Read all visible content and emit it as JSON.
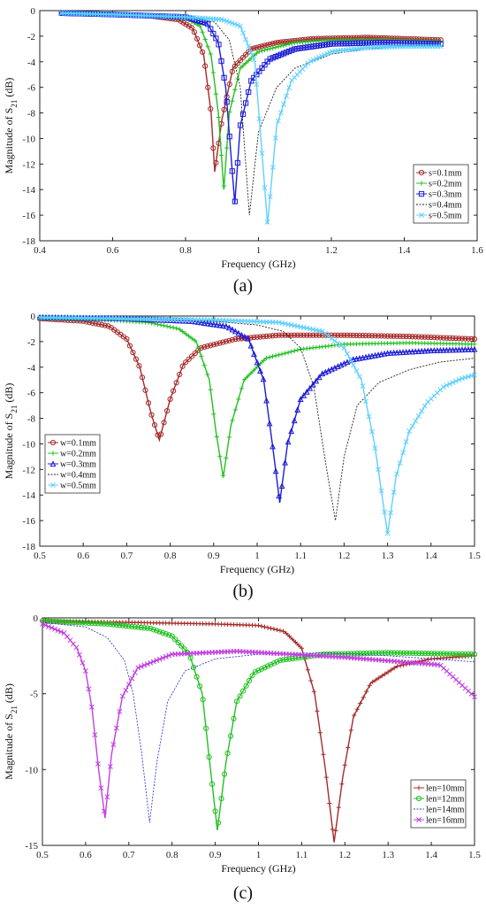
{
  "panels": [
    {
      "caption": "(a)",
      "chart_data": {
        "type": "line",
        "xlabel": "Frequency (GHz)",
        "ylabel": "Magnitude of S21 (dB)",
        "xlim": [
          0.4,
          1.6
        ],
        "ylim": [
          -18,
          0
        ],
        "xticks": [
          "0.4",
          "0.6",
          "0.8",
          "1",
          "1.2",
          "1.4",
          "1.6"
        ],
        "yticks": [
          "0",
          "-2",
          "-4",
          "-6",
          "-8",
          "-10",
          "-12",
          "-14",
          "-16",
          "-18"
        ],
        "legend_position": "lower-right",
        "series": [
          {
            "name": "s=0.1mm",
            "color": "#a52a2a",
            "marker": "circle",
            "x": [
              0.46,
              0.6,
              0.7,
              0.78,
              0.82,
              0.85,
              0.87,
              0.88,
              0.9,
              0.93,
              0.98,
              1.05,
              1.15,
              1.3,
              1.5
            ],
            "y": [
              -0.2,
              -0.3,
              -0.4,
              -0.7,
              -1.4,
              -3.5,
              -8.0,
              -12.6,
              -8.5,
              -4.5,
              -3.0,
              -2.5,
              -2.2,
              -2.1,
              -2.3
            ]
          },
          {
            "name": "s=0.2mm",
            "color": "#22c022",
            "marker": "plus",
            "x": [
              0.46,
              0.6,
              0.7,
              0.8,
              0.84,
              0.87,
              0.89,
              0.905,
              0.92,
              0.95,
              1.0,
              1.1,
              1.2,
              1.35,
              1.5
            ],
            "y": [
              -0.2,
              -0.3,
              -0.4,
              -0.6,
              -1.2,
              -3.5,
              -8.0,
              -14.0,
              -8.0,
              -4.5,
              -3.2,
              -2.5,
              -2.3,
              -2.3,
              -2.4
            ]
          },
          {
            "name": "s=0.3mm",
            "color": "#1c1cd6",
            "marker": "square",
            "x": [
              0.46,
              0.6,
              0.7,
              0.8,
              0.86,
              0.89,
              0.91,
              0.935,
              0.95,
              0.98,
              1.03,
              1.1,
              1.2,
              1.35,
              1.5
            ],
            "y": [
              -0.2,
              -0.3,
              -0.4,
              -0.5,
              -1.0,
              -2.5,
              -6.0,
              -15.1,
              -9.0,
              -5.5,
              -3.8,
              -3.0,
              -2.6,
              -2.5,
              -2.6
            ]
          },
          {
            "name": "s=0.4mm",
            "color": "#222222",
            "marker": "none",
            "x": [
              0.46,
              0.6,
              0.7,
              0.8,
              0.88,
              0.92,
              0.95,
              0.975,
              1.0,
              1.05,
              1.1,
              1.2,
              1.3,
              1.4,
              1.5
            ],
            "y": [
              -0.2,
              -0.3,
              -0.4,
              -0.5,
              -0.9,
              -2.3,
              -6.0,
              -16.0,
              -9.5,
              -6.0,
              -4.5,
              -3.4,
              -3.0,
              -2.8,
              -2.7
            ]
          },
          {
            "name": "s=0.5mm",
            "color": "#5fd0ff",
            "marker": "x",
            "x": [
              0.46,
              0.6,
              0.7,
              0.8,
              0.9,
              0.95,
              0.99,
              1.025,
              1.05,
              1.09,
              1.14,
              1.2,
              1.3,
              1.4,
              1.5
            ],
            "y": [
              -0.2,
              -0.3,
              -0.4,
              -0.5,
              -0.7,
              -1.2,
              -4.0,
              -16.7,
              -9.0,
              -5.5,
              -4.0,
              -3.2,
              -2.9,
              -2.8,
              -2.8
            ]
          }
        ]
      }
    },
    {
      "caption": "(b)",
      "chart_data": {
        "type": "line",
        "xlabel": "Frequency (GHz)",
        "ylabel": "Magnitude of S21 (dB)",
        "xlim": [
          0.5,
          1.5
        ],
        "ylim": [
          -18,
          0
        ],
        "xticks": [
          "0.5",
          "0.6",
          "0.7",
          "0.8",
          "0.9",
          "1",
          "1.1",
          "1.2",
          "1.3",
          "1.4",
          "1.5"
        ],
        "yticks": [
          "0",
          "-2",
          "-4",
          "-6",
          "-8",
          "-10",
          "-12",
          "-14",
          "-16",
          "-18"
        ],
        "legend_position": "lower-left",
        "series": [
          {
            "name": "w=0.1mm",
            "color": "#a52a2a",
            "marker": "circle",
            "x": [
              0.5,
              0.6,
              0.66,
              0.7,
              0.73,
              0.755,
              0.775,
              0.8,
              0.83,
              0.87,
              0.95,
              1.05,
              1.2,
              1.35,
              1.5
            ],
            "y": [
              -0.2,
              -0.4,
              -0.8,
              -1.8,
              -4.0,
              -7.5,
              -9.7,
              -6.5,
              -3.8,
              -2.5,
              -1.8,
              -1.5,
              -1.5,
              -1.6,
              -1.8
            ]
          },
          {
            "name": "w=0.2mm",
            "color": "#22c022",
            "marker": "plus",
            "x": [
              0.5,
              0.65,
              0.75,
              0.82,
              0.86,
              0.89,
              0.905,
              0.922,
              0.94,
              0.97,
              1.02,
              1.1,
              1.2,
              1.35,
              1.5
            ],
            "y": [
              -0.2,
              -0.3,
              -0.5,
              -1.0,
              -2.0,
              -5.0,
              -9.0,
              -12.6,
              -8.5,
              -5.0,
              -3.3,
              -2.6,
              -2.2,
              -2.1,
              -2.2
            ]
          },
          {
            "name": "w=0.3mm",
            "color": "#1c1cd6",
            "marker": "triangle",
            "x": [
              0.5,
              0.7,
              0.85,
              0.93,
              0.98,
              1.015,
              1.035,
              1.052,
              1.07,
              1.1,
              1.15,
              1.22,
              1.3,
              1.4,
              1.5
            ],
            "y": [
              -0.1,
              -0.2,
              -0.4,
              -0.8,
              -1.8,
              -5.0,
              -10.0,
              -14.6,
              -10.0,
              -6.5,
              -4.5,
              -3.4,
              -2.9,
              -2.7,
              -2.6
            ]
          },
          {
            "name": "w=0.4mm",
            "color": "#222222",
            "marker": "none",
            "x": [
              0.5,
              0.7,
              0.9,
              1.0,
              1.06,
              1.1,
              1.13,
              1.16,
              1.18,
              1.2,
              1.23,
              1.28,
              1.35,
              1.42,
              1.5
            ],
            "y": [
              -0.1,
              -0.2,
              -0.4,
              -0.7,
              -1.2,
              -2.5,
              -5.5,
              -12.0,
              -16.0,
              -11.0,
              -7.0,
              -5.2,
              -4.2,
              -3.6,
              -3.3
            ]
          },
          {
            "name": "w=0.5mm",
            "color": "#5fd0ff",
            "marker": "x",
            "x": [
              0.5,
              0.7,
              0.9,
              1.05,
              1.15,
              1.2,
              1.24,
              1.27,
              1.3,
              1.32,
              1.35,
              1.39,
              1.43,
              1.47,
              1.5
            ],
            "y": [
              -0.1,
              -0.2,
              -0.3,
              -0.5,
              -1.2,
              -2.5,
              -5.0,
              -10.0,
              -17.0,
              -12.5,
              -9.0,
              -6.8,
              -5.5,
              -4.9,
              -4.6
            ]
          }
        ]
      }
    },
    {
      "caption": "(c)",
      "chart_data": {
        "type": "line",
        "xlabel": "Frequency (GHz)",
        "ylabel": "Magnitude of S21 (dB)",
        "xlim": [
          0.5,
          1.5
        ],
        "ylim": [
          -15,
          0
        ],
        "xticks": [
          "0.5",
          "0.6",
          "0.7",
          "0.8",
          "0.9",
          "1",
          "1.1",
          "1.2",
          "1.3",
          "1.4",
          "1.5"
        ],
        "yticks": [
          "0",
          "-5",
          "-10",
          "-15"
        ],
        "legend_position": "lower-right",
        "series": [
          {
            "name": "len=10mm",
            "color": "#a52a2a",
            "marker": "plus",
            "x": [
              0.5,
              0.7,
              0.9,
              1.0,
              1.06,
              1.1,
              1.13,
              1.155,
              1.175,
              1.195,
              1.22,
              1.26,
              1.32,
              1.4,
              1.5
            ],
            "y": [
              -0.2,
              -0.3,
              -0.4,
              -0.5,
              -0.9,
              -2.0,
              -5.0,
              -10.0,
              -14.8,
              -10.5,
              -6.5,
              -4.3,
              -3.2,
              -2.7,
              -2.5
            ]
          },
          {
            "name": "len=12mm",
            "color": "#22c022",
            "marker": "circle",
            "x": [
              0.5,
              0.65,
              0.75,
              0.8,
              0.84,
              0.87,
              0.885,
              0.905,
              0.925,
              0.95,
              0.99,
              1.05,
              1.15,
              1.3,
              1.5
            ],
            "y": [
              -0.2,
              -0.4,
              -0.7,
              -1.2,
              -2.4,
              -5.0,
              -9.0,
              -14.0,
              -9.5,
              -5.5,
              -3.6,
              -2.8,
              -2.4,
              -2.3,
              -2.4
            ]
          },
          {
            "name": "len=14mm",
            "color": "#3a3ad0",
            "marker": "none",
            "x": [
              0.5,
              0.6,
              0.65,
              0.69,
              0.71,
              0.73,
              0.748,
              0.765,
              0.79,
              0.83,
              0.9,
              1.0,
              1.15,
              1.3,
              1.5
            ],
            "y": [
              -0.3,
              -0.6,
              -1.3,
              -2.8,
              -5.0,
              -9.0,
              -13.5,
              -9.5,
              -5.5,
              -3.5,
              -2.7,
              -2.4,
              -2.3,
              -2.5,
              -2.9
            ]
          },
          {
            "name": "len=16mm",
            "color": "#c040e0",
            "marker": "x",
            "x": [
              0.5,
              0.55,
              0.58,
              0.6,
              0.615,
              0.63,
              0.645,
              0.66,
              0.685,
              0.72,
              0.8,
              0.95,
              1.2,
              1.42,
              1.5
            ],
            "y": [
              -0.4,
              -1.0,
              -2.0,
              -3.5,
              -6.0,
              -10.0,
              -13.2,
              -9.0,
              -5.2,
              -3.3,
              -2.4,
              -2.2,
              -2.6,
              -3.1,
              -5.2
            ]
          }
        ]
      }
    }
  ]
}
